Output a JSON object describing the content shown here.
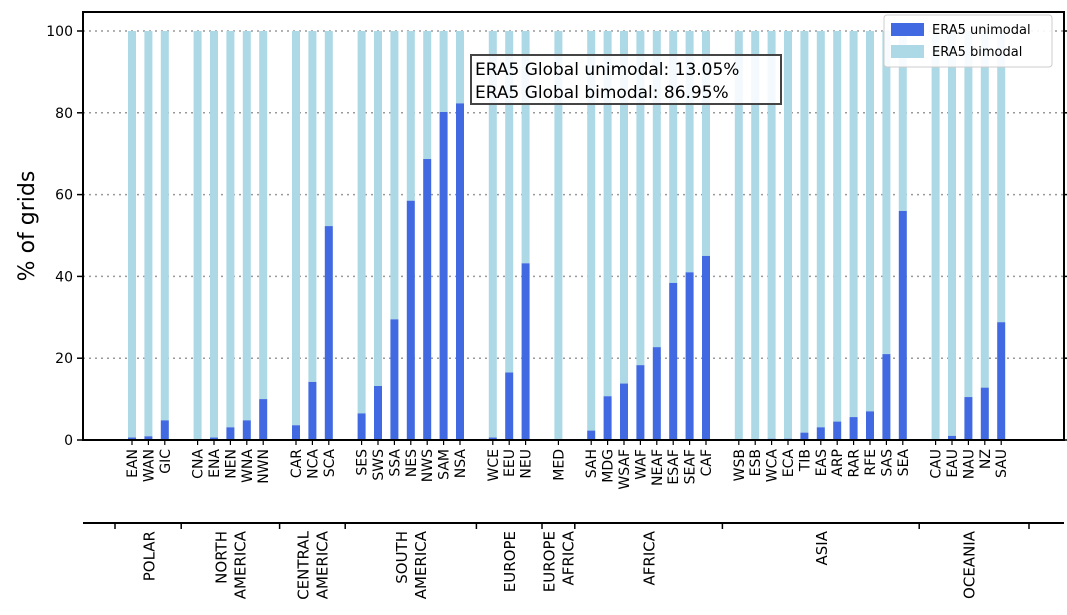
{
  "chart_data": {
    "type": "bar",
    "stacked": true,
    "ylabel": "% of grids",
    "ylim": [
      0,
      100
    ],
    "yticks": [
      0,
      20,
      40,
      60,
      80,
      100
    ],
    "grid": "horizontal dotted",
    "legend_position": "top-right",
    "colors": {
      "unimodal": "#4169e1",
      "bimodal": "#add8e6"
    },
    "annotation": [
      "ERA5 Global unimodal: 13.05%",
      "ERA5 Global bimodal: 86.95%"
    ],
    "categories": [
      "EAN",
      "WAN",
      "GIC",
      "CNA",
      "ENA",
      "NEN",
      "WNA",
      "NWN",
      "CAR",
      "NCA",
      "SCA",
      "SES",
      "SWS",
      "SSA",
      "NES",
      "NWS",
      "SAM",
      "NSA",
      "WCE",
      "EEU",
      "NEU",
      "MED",
      "SAH",
      "MDG",
      "WSAF",
      "WAF",
      "NEAF",
      "ESAF",
      "SEAF",
      "CAF",
      "WSB",
      "ESB",
      "WCA",
      "ECA",
      "TIB",
      "EAS",
      "ARP",
      "RAR",
      "RFE",
      "SAS",
      "SEA",
      "CAU",
      "EAU",
      "NAU",
      "NZ",
      "SAU"
    ],
    "series": [
      {
        "name": "ERA5 unimodal",
        "values": [
          0.6,
          0.9,
          4.8,
          0,
          0.6,
          3.1,
          4.8,
          10,
          3.6,
          14.2,
          52.3,
          6.5,
          13.2,
          29.5,
          58.5,
          68.7,
          80.2,
          82.3,
          0.6,
          16.5,
          43.2,
          0,
          2.3,
          10.7,
          13.8,
          18.3,
          22.7,
          38.4,
          41,
          45,
          0,
          0,
          0.3,
          0.3,
          1.8,
          3.1,
          4.5,
          5.6,
          7,
          21,
          56,
          0,
          1,
          10.5,
          12.8,
          28.8
        ]
      },
      {
        "name": "ERA5 bimodal",
        "values": [
          99.4,
          99.1,
          95.2,
          100,
          99.4,
          96.9,
          95.2,
          90,
          96.4,
          85.8,
          47.7,
          93.5,
          86.8,
          70.5,
          41.5,
          31.3,
          19.8,
          17.7,
          99.4,
          83.5,
          56.8,
          100,
          97.7,
          89.3,
          86.2,
          81.7,
          77.3,
          61.6,
          59,
          55,
          100,
          100,
          99.7,
          99.7,
          98.2,
          96.9,
          95.5,
          94.4,
          93,
          79,
          44,
          100,
          99,
          89.5,
          87.2,
          71.2
        ]
      }
    ],
    "groups": [
      {
        "label": [
          "POLAR"
        ],
        "members": [
          "EAN",
          "WAN",
          "GIC"
        ]
      },
      {
        "label": [
          "NORTH",
          "AMERICA"
        ],
        "members": [
          "CNA",
          "ENA",
          "NEN",
          "WNA",
          "NWN"
        ]
      },
      {
        "label": [
          "CENTRAL",
          "AMERICA"
        ],
        "members": [
          "CAR",
          "NCA",
          "SCA"
        ]
      },
      {
        "label": [
          "SOUTH",
          "AMERICA"
        ],
        "members": [
          "SES",
          "SWS",
          "SSA",
          "NES",
          "NWS",
          "SAM",
          "NSA"
        ]
      },
      {
        "label": [
          "EUROPE"
        ],
        "members": [
          "WCE",
          "EEU",
          "NEU"
        ]
      },
      {
        "label": [
          "EUROPE",
          "AFRICA"
        ],
        "members": [
          "MED"
        ]
      },
      {
        "label": [
          "AFRICA"
        ],
        "members": [
          "SAH",
          "MDG",
          "WSAF",
          "WAF",
          "NEAF",
          "ESAF",
          "SEAF",
          "CAF"
        ]
      },
      {
        "label": [
          "ASIA"
        ],
        "members": [
          "WSB",
          "ESB",
          "WCA",
          "ECA",
          "TIB",
          "EAS",
          "ARP",
          "RAR",
          "RFE",
          "SAS",
          "SEA"
        ]
      },
      {
        "label": [
          "OCEANIA"
        ],
        "members": [
          "CAU",
          "EAU",
          "NAU",
          "NZ",
          "SAU"
        ]
      }
    ]
  }
}
